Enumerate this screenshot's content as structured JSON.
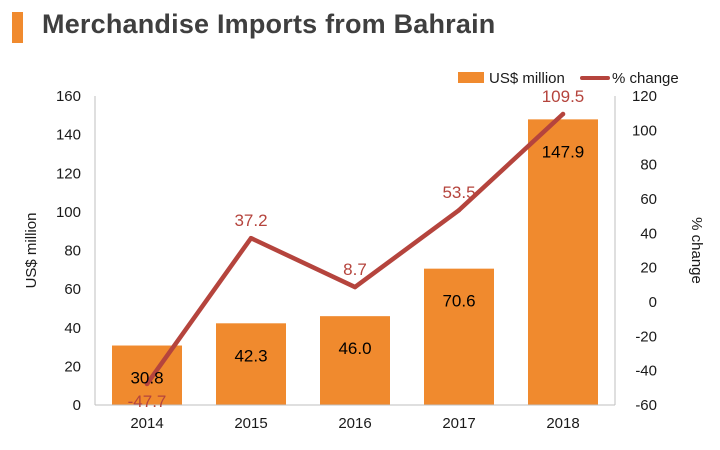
{
  "chart_data": {
    "type": "bar",
    "title": "Merchandise Imports from Bahrain",
    "categories": [
      "2014",
      "2015",
      "2016",
      "2017",
      "2018"
    ],
    "series": [
      {
        "name": "US$ million",
        "kind": "bar",
        "axis": "left",
        "color": "#f08a2e",
        "values": [
          30.8,
          42.3,
          46.0,
          70.6,
          147.9
        ],
        "labels": [
          "30.8",
          "42.3",
          "46.0",
          "70.6",
          "147.9"
        ]
      },
      {
        "name": "% change",
        "kind": "line",
        "axis": "right",
        "color": "#b5443d",
        "values": [
          -47.7,
          37.2,
          8.7,
          53.5,
          109.5
        ],
        "labels": [
          "-47.7",
          "37.2",
          "8.7",
          "53.5",
          "109.5"
        ]
      }
    ],
    "ylabel": "US$ million",
    "y2label": "% change",
    "ylim": [
      0,
      160
    ],
    "y2lim": [
      -60,
      120
    ],
    "yticks": [
      "0",
      "20",
      "40",
      "60",
      "80",
      "100",
      "120",
      "140",
      "160"
    ],
    "y2ticks": [
      "-60",
      "-40",
      "-20",
      "0",
      "20",
      "40",
      "60",
      "80",
      "100",
      "120"
    ],
    "legend_position": "top-right",
    "grid": false
  }
}
